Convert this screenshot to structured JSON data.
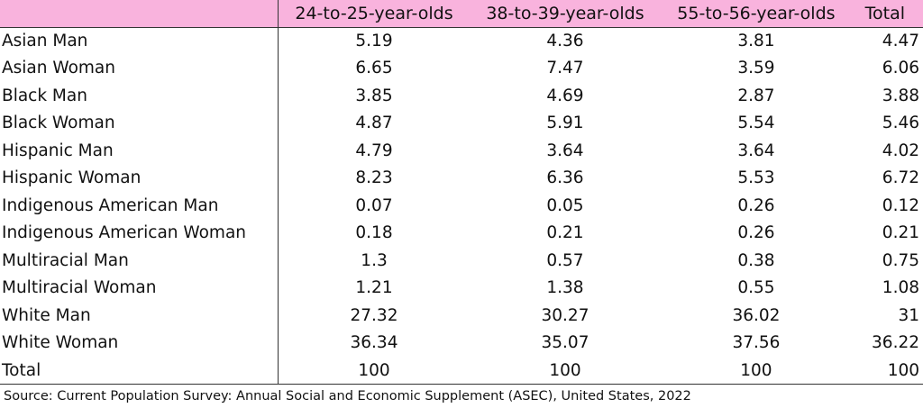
{
  "chart_data": {
    "type": "table",
    "columns": [
      "",
      "24-to-25-year-olds",
      "38-to-39-year-olds",
      "55-to-56-year-olds",
      "Total"
    ],
    "rows": [
      {
        "label": "Asian Man",
        "values": [
          "5.19",
          "4.36",
          "3.81",
          "4.47"
        ]
      },
      {
        "label": "Asian Woman",
        "values": [
          "6.65",
          "7.47",
          "3.59",
          "6.06"
        ]
      },
      {
        "label": "Black Man",
        "values": [
          "3.85",
          "4.69",
          "2.87",
          "3.88"
        ]
      },
      {
        "label": "Black Woman",
        "values": [
          "4.87",
          "5.91",
          "5.54",
          "5.46"
        ]
      },
      {
        "label": "Hispanic Man",
        "values": [
          "4.79",
          "3.64",
          "3.64",
          "4.02"
        ]
      },
      {
        "label": "Hispanic Woman",
        "values": [
          "8.23",
          "6.36",
          "5.53",
          "6.72"
        ]
      },
      {
        "label": "Indigenous American Man",
        "values": [
          "0.07",
          "0.05",
          "0.26",
          "0.12"
        ]
      },
      {
        "label": "Indigenous American Woman",
        "values": [
          "0.18",
          "0.21",
          "0.26",
          "0.21"
        ]
      },
      {
        "label": "Multiracial Man",
        "values": [
          "1.3",
          "0.57",
          "0.38",
          "0.75"
        ]
      },
      {
        "label": "Multiracial Woman",
        "values": [
          "1.21",
          "1.38",
          "0.55",
          "1.08"
        ]
      },
      {
        "label": "White Man",
        "values": [
          "27.32",
          "30.27",
          "36.02",
          "31"
        ]
      },
      {
        "label": "White Woman",
        "values": [
          "36.34",
          "35.07",
          "37.56",
          "36.22"
        ]
      },
      {
        "label": "Total",
        "values": [
          "100",
          "100",
          "100",
          "100"
        ]
      }
    ],
    "source": "Source: Current Population Survey: Annual Social and Economic Supplement (ASEC), United States, 2022",
    "header_color": "#f9b3dd"
  }
}
